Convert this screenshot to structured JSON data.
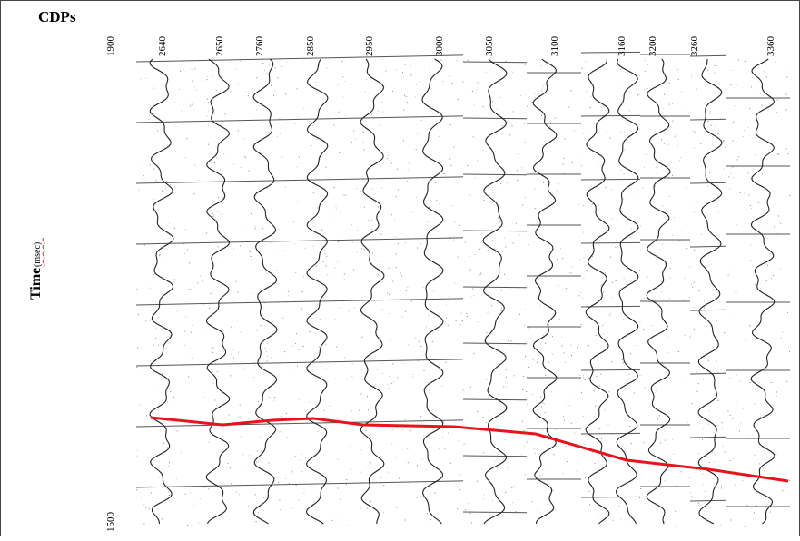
{
  "header": {
    "title": "CDPs"
  },
  "axis": {
    "label": "Time",
    "unit": "(msec)",
    "top": "1900",
    "bottom": "1500"
  },
  "cdps": [
    "2640",
    "2650",
    "2760",
    "2850",
    "2950",
    "3000",
    "3050",
    "3100",
    "3160",
    "3200",
    "3260",
    "3360"
  ]
}
